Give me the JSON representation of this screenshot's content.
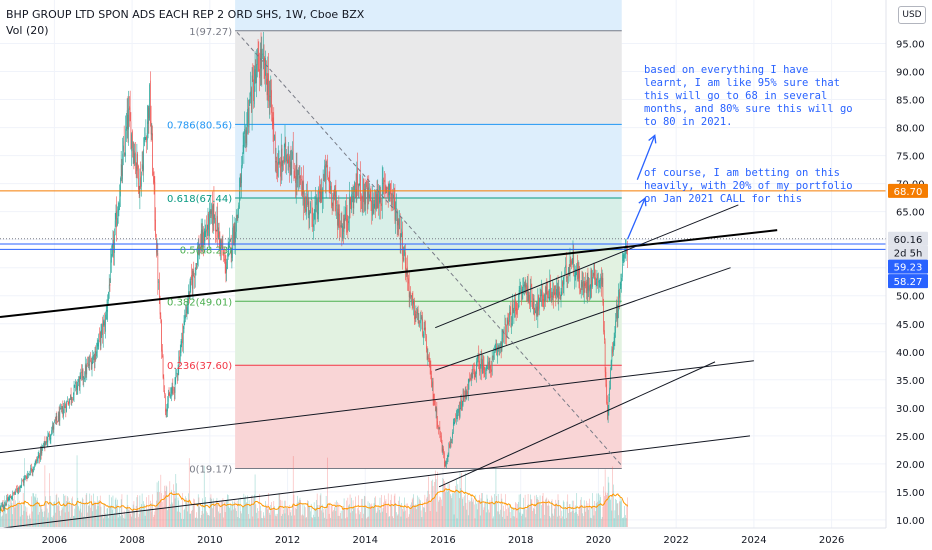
{
  "header": {
    "title": "BHP GROUP LTD SPON ADS EACH REP 2 ORD SHS, 1W, Cboe BZX",
    "volume_label": "Vol (20)",
    "currency_button": "USD"
  },
  "annotation": {
    "paragraph1": "based on everything I have learnt, I am like 95% sure that this will go to 68 in several months, and 80% sure this will go to 80 in 2021.",
    "paragraph2": "of course, I am betting on this heavily, with 20% of my portfolio on Jan 2021 CALL for this"
  },
  "chart_data": {
    "type": "candlestick",
    "symbol": "BHP GROUP LTD SPON ADS EACH REP 2 ORD SHS",
    "interval": "1W",
    "exchange": "Cboe BZX",
    "y_axis": {
      "scale": "linear",
      "range": [
        9,
        100
      ],
      "ticks": [
        "10.00",
        "15.00",
        "20.00",
        "25.00",
        "30.00",
        "35.00",
        "40.00",
        "45.00",
        "50.00",
        "55.00",
        "60.00",
        "65.00",
        "70.00",
        "75.00",
        "80.00",
        "85.00",
        "90.00",
        "95.00"
      ],
      "tick_values": [
        10,
        15,
        20,
        25,
        30,
        35,
        40,
        45,
        50,
        55,
        60,
        65,
        70,
        75,
        80,
        85,
        90,
        95
      ]
    },
    "x_axis": {
      "range": [
        2004.6,
        2027.4
      ],
      "ticks": [
        "2006",
        "2008",
        "2010",
        "2012",
        "2014",
        "2016",
        "2018",
        "2020",
        "2022",
        "2024",
        "2026"
      ],
      "tick_values": [
        2006,
        2008,
        2010,
        2012,
        2014,
        2016,
        2018,
        2020,
        2022,
        2024,
        2026
      ]
    },
    "price_path": [
      [
        2004.6,
        12
      ],
      [
        2005.0,
        15
      ],
      [
        2005.5,
        20
      ],
      [
        2006.0,
        27
      ],
      [
        2006.5,
        33
      ],
      [
        2007.0,
        39
      ],
      [
        2007.3,
        45
      ],
      [
        2007.7,
        70
      ],
      [
        2007.9,
        82
      ],
      [
        2008.2,
        70
      ],
      [
        2008.45,
        85
      ],
      [
        2008.65,
        55
      ],
      [
        2008.85,
        30
      ],
      [
        2009.1,
        34
      ],
      [
        2009.4,
        48
      ],
      [
        2009.7,
        58
      ],
      [
        2010.1,
        65
      ],
      [
        2010.4,
        55
      ],
      [
        2010.7,
        64
      ],
      [
        2011.0,
        84
      ],
      [
        2011.3,
        92
      ],
      [
        2011.5,
        88
      ],
      [
        2011.75,
        72
      ],
      [
        2012.0,
        76
      ],
      [
        2012.4,
        68
      ],
      [
        2012.7,
        64
      ],
      [
        2013.0,
        72
      ],
      [
        2013.4,
        62
      ],
      [
        2013.8,
        70
      ],
      [
        2014.2,
        66
      ],
      [
        2014.6,
        70
      ],
      [
        2014.9,
        62
      ],
      [
        2015.2,
        48
      ],
      [
        2015.5,
        44
      ],
      [
        2015.8,
        30
      ],
      [
        2016.05,
        20
      ],
      [
        2016.3,
        27
      ],
      [
        2016.6,
        33
      ],
      [
        2016.9,
        38
      ],
      [
        2017.2,
        37
      ],
      [
        2017.5,
        42
      ],
      [
        2017.8,
        47
      ],
      [
        2018.1,
        52
      ],
      [
        2018.4,
        48
      ],
      [
        2018.7,
        51
      ],
      [
        2019.0,
        50
      ],
      [
        2019.3,
        57
      ],
      [
        2019.6,
        51
      ],
      [
        2019.9,
        54
      ],
      [
        2020.1,
        52
      ],
      [
        2020.22,
        28
      ],
      [
        2020.35,
        40
      ],
      [
        2020.5,
        49
      ],
      [
        2020.62,
        55
      ],
      [
        2020.75,
        59.23
      ]
    ],
    "candle_count": 840,
    "volume_average_length": 20,
    "fibonacci_retracement": {
      "from_year": 2010.65,
      "to_year": 2020.6,
      "levels": [
        {
          "ratio": "1",
          "price": 97.27,
          "label": "1(97.27)",
          "color": "#787b86",
          "fill": "#e9e9ea"
        },
        {
          "ratio": "0.786",
          "price": 80.56,
          "label": "0.786(80.56)",
          "color": "#2196f3",
          "fill": "#ddeefc"
        },
        {
          "ratio": "0.618",
          "price": 67.44,
          "label": "0.618(67.44)",
          "color": "#089981",
          "fill": "#d8efe8"
        },
        {
          "ratio": "0.5",
          "price": 58.23,
          "label": "0.5(58.23)",
          "color": "#4caf50",
          "fill": "#e2f2e1"
        },
        {
          "ratio": "0.382",
          "price": 49.01,
          "label": "0.382(49.01)",
          "color": "#4caf50",
          "fill": "#e2f2e1"
        },
        {
          "ratio": "0.236",
          "price": 37.6,
          "label": "0.236(37.60)",
          "color": "#f23645",
          "fill": "#f9d5d6"
        },
        {
          "ratio": "0",
          "price": 19.17,
          "label": "0(19.17)",
          "color": "#787b86",
          "fill": null
        }
      ]
    },
    "horizontal_lines": [
      {
        "price": 68.7,
        "color": "#f57c00"
      },
      {
        "price": 59.23,
        "color": "#2962ff"
      },
      {
        "price": 58.27,
        "color": "#2962ff"
      }
    ],
    "price_labels": [
      {
        "text": "68.70",
        "price": 68.7,
        "bg": "#f57c00",
        "fg": "#ffffff"
      },
      {
        "text": "60.16",
        "price": 60.16,
        "bg": "#e0e3eb",
        "fg": "#131722"
      },
      {
        "text": "2d 5h",
        "price": 57.7,
        "bg": "#e0e3eb",
        "fg": "#131722"
      },
      {
        "text": "59.23",
        "price": 55.2,
        "bg": "#2962ff",
        "fg": "#ffffff"
      },
      {
        "text": "58.27",
        "price": 52.6,
        "bg": "#2962ff",
        "fg": "#ffffff"
      }
    ],
    "trend_lines": [
      {
        "from": [
          2004.6,
          46.2
        ],
        "to": [
          2024.6,
          61.7
        ],
        "color": "#000000",
        "width": 2
      },
      {
        "from": [
          2004.6,
          22
        ],
        "to": [
          2024.0,
          38.4
        ],
        "color": "#131722",
        "width": 1
      },
      {
        "from": [
          2004.6,
          8.5
        ],
        "to": [
          2023.9,
          25.0
        ],
        "color": "#131722",
        "width": 1
      },
      {
        "from": [
          2015.8,
          44.3
        ],
        "to": [
          2023.6,
          66.2
        ],
        "color": "#131722",
        "width": 1
      },
      {
        "from": [
          2015.8,
          36.7
        ],
        "to": [
          2023.4,
          55.0
        ],
        "color": "#131722",
        "width": 1
      },
      {
        "from": [
          2015.9,
          15.9
        ],
        "to": [
          2023.0,
          38.2
        ],
        "color": "#131722",
        "width": 1
      }
    ],
    "diagonal_dashed": {
      "from": [
        2010.7,
        97.0
      ],
      "to": [
        2020.6,
        19.7
      ],
      "color": "#787b86"
    },
    "arrows": [
      {
        "from": [
          2020.75,
          60.1
        ],
        "to": [
          2021.2,
          67.4
        ],
        "color": "#2962ff"
      },
      {
        "from": [
          2021.0,
          70.7
        ],
        "to": [
          2021.45,
          78.6
        ],
        "color": "#2962ff"
      }
    ]
  }
}
